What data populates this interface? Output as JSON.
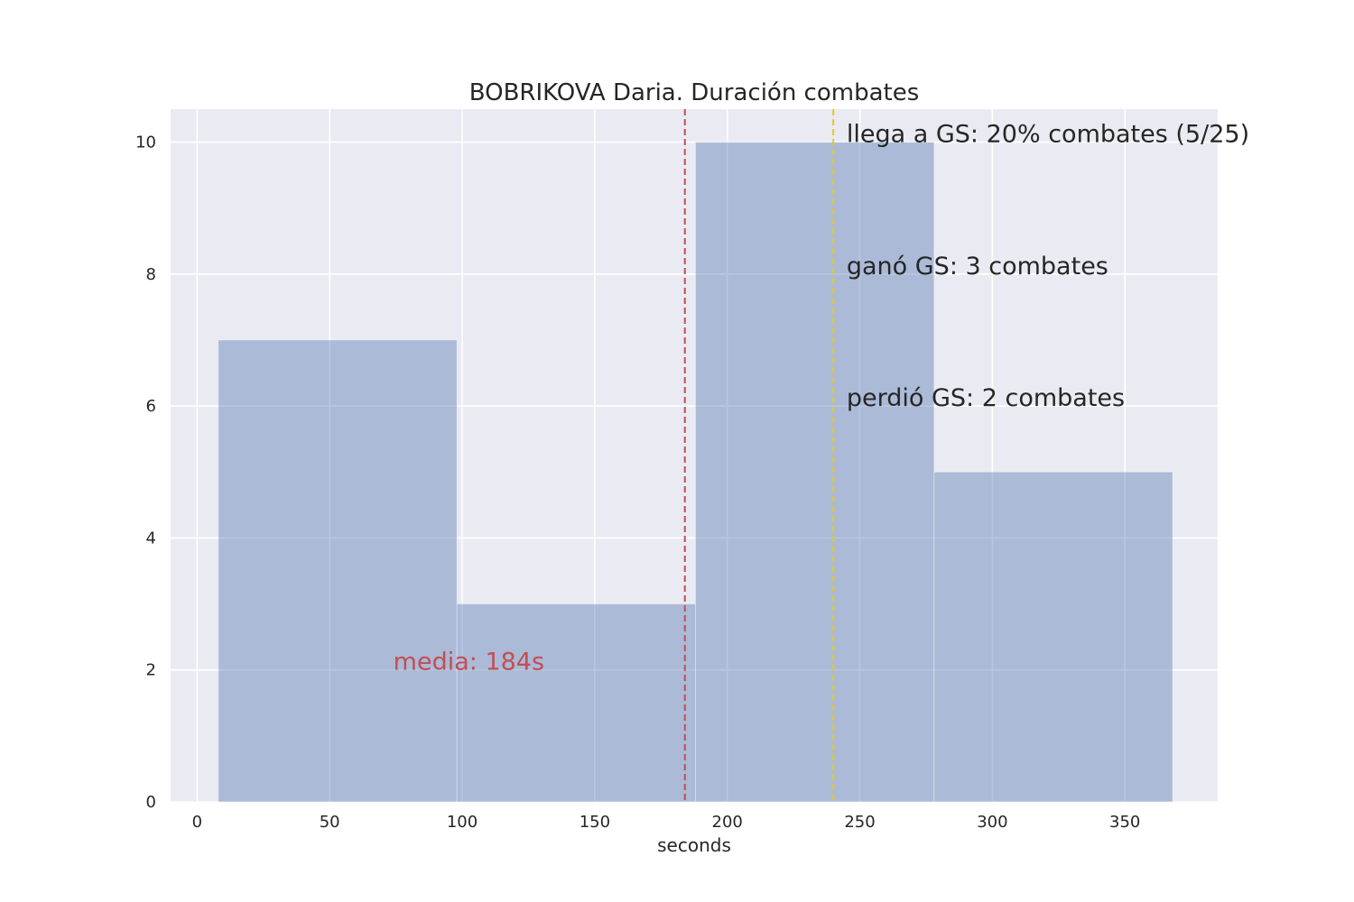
{
  "chart_data": {
    "type": "bar",
    "subtype": "histogram",
    "title": "BOBRIKOVA Daria. Duración combates",
    "xlabel": "seconds",
    "ylabel": "",
    "xlim": [
      -10,
      385
    ],
    "ylim": [
      0,
      10.5
    ],
    "xticks": [
      0,
      50,
      100,
      150,
      200,
      250,
      300,
      350
    ],
    "yticks": [
      0,
      2,
      4,
      6,
      8,
      10
    ],
    "grid": true,
    "legend": "none",
    "bins": [
      {
        "x0": 8,
        "x1": 98,
        "count": 7
      },
      {
        "x0": 98,
        "x1": 188,
        "count": 3
      },
      {
        "x0": 188,
        "x1": 278,
        "count": 10
      },
      {
        "x0": 278,
        "x1": 368,
        "count": 5
      }
    ],
    "vlines": [
      {
        "x": 184,
        "color": "#c44e52",
        "style": "dashed"
      },
      {
        "x": 240,
        "color": "#e8c81a",
        "style": "dashed"
      }
    ],
    "annotations": [
      {
        "text": "media: 184s",
        "x": 74,
        "y": 2,
        "color": "#c44e52"
      },
      {
        "text": "llega a GS: 20% combates (5/25)",
        "x": 245,
        "y": 10,
        "color": "#262626"
      },
      {
        "text": "ganó GS: 3 combates",
        "x": 245,
        "y": 8,
        "color": "#262626"
      },
      {
        "text": "perdió GS: 2 combates",
        "x": 245,
        "y": 6,
        "color": "#262626"
      }
    ],
    "colors": {
      "plot_background": "#eaeaf2",
      "grid": "#ffffff",
      "bar_fill": "#4c72b0",
      "text": "#262626"
    }
  }
}
